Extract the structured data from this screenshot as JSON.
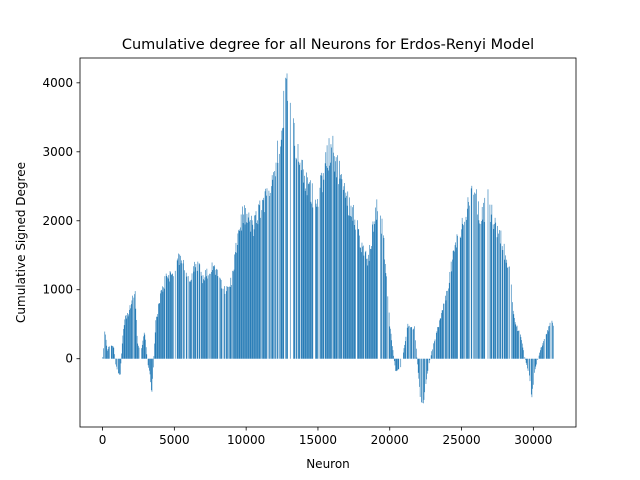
{
  "chart_data": {
    "type": "bar",
    "title": "Cumulative degree for all Neurons for Erdos-Renyi Model",
    "xlabel": "Neuron",
    "ylabel": "Cumulative Signed Degree",
    "xlim": [
      -1570,
      32970
    ],
    "ylim": [
      -990,
      4360
    ],
    "x_ticks": [
      0,
      5000,
      10000,
      15000,
      20000,
      25000,
      30000
    ],
    "y_ticks": [
      0,
      1000,
      2000,
      3000,
      4000
    ],
    "grid": false,
    "legend": "none",
    "bar_color": "#1f77b4",
    "envelope": [
      [
        0,
        30
      ],
      [
        150,
        420
      ],
      [
        300,
        120
      ],
      [
        500,
        200
      ],
      [
        750,
        180
      ],
      [
        900,
        -80
      ],
      [
        1050,
        -190
      ],
      [
        1200,
        -260
      ],
      [
        1400,
        380
      ],
      [
        1550,
        600
      ],
      [
        1800,
        650
      ],
      [
        2100,
        880
      ],
      [
        2250,
        1000
      ],
      [
        2400,
        240
      ],
      [
        2650,
        80
      ],
      [
        2900,
        420
      ],
      [
        3100,
        -30
      ],
      [
        3300,
        -240
      ],
      [
        3400,
        -540
      ],
      [
        3500,
        -150
      ],
      [
        3700,
        560
      ],
      [
        4000,
        900
      ],
      [
        4400,
        1180
      ],
      [
        5000,
        1250
      ],
      [
        5400,
        1500
      ],
      [
        6000,
        1150
      ],
      [
        6500,
        1400
      ],
      [
        7000,
        1150
      ],
      [
        7500,
        1300
      ],
      [
        8000,
        1300
      ],
      [
        8500,
        950
      ],
      [
        9000,
        1150
      ],
      [
        9500,
        1900
      ],
      [
        9800,
        2100
      ],
      [
        10500,
        1900
      ],
      [
        11000,
        2200
      ],
      [
        11500,
        2400
      ],
      [
        12000,
        2700
      ],
      [
        12500,
        3550
      ],
      [
        12900,
        4080
      ],
      [
        13200,
        3700
      ],
      [
        13500,
        3000
      ],
      [
        14000,
        2600
      ],
      [
        14500,
        2400
      ],
      [
        15000,
        2300
      ],
      [
        15500,
        2800
      ],
      [
        15900,
        3080
      ],
      [
        16500,
        2700
      ],
      [
        17000,
        2300
      ],
      [
        17500,
        2100
      ],
      [
        18000,
        1600
      ],
      [
        18500,
        1400
      ],
      [
        19000,
        2200
      ],
      [
        19500,
        1900
      ],
      [
        20000,
        450
      ],
      [
        20400,
        -200
      ],
      [
        20800,
        -100
      ],
      [
        21200,
        480
      ],
      [
        21700,
        450
      ],
      [
        22100,
        -550
      ],
      [
        22300,
        -660
      ],
      [
        22600,
        -200
      ],
      [
        22900,
        100
      ],
      [
        23200,
        350
      ],
      [
        23600,
        650
      ],
      [
        24000,
        1000
      ],
      [
        24500,
        1600
      ],
      [
        25000,
        1900
      ],
      [
        25600,
        2300
      ],
      [
        25900,
        2500
      ],
      [
        26300,
        2000
      ],
      [
        26800,
        2300
      ],
      [
        27200,
        2000
      ],
      [
        27800,
        1700
      ],
      [
        28300,
        1300
      ],
      [
        28700,
        500
      ],
      [
        29100,
        350
      ],
      [
        29400,
        0
      ],
      [
        29700,
        -250
      ],
      [
        29850,
        -570
      ],
      [
        30100,
        -150
      ],
      [
        30500,
        150
      ],
      [
        30900,
        350
      ],
      [
        31200,
        540
      ],
      [
        31400,
        500
      ]
    ]
  }
}
